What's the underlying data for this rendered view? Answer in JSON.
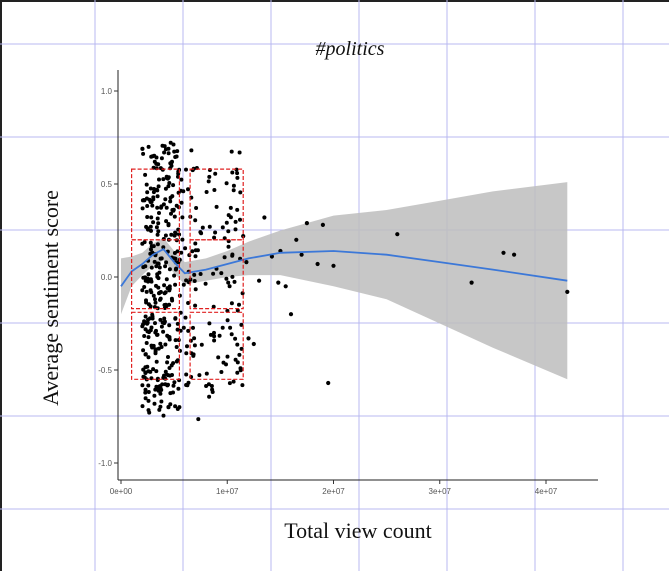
{
  "chart_data": {
    "type": "scatter",
    "title": "#politics",
    "xlabel": "Total view count",
    "ylabel": "Average sentiment score",
    "xlim": [
      0,
      43000000
    ],
    "ylim": [
      -1.05,
      1.1
    ],
    "x_ticks": [
      0,
      10000000,
      20000000,
      30000000,
      40000000
    ],
    "x_tick_labels": [
      "0e+00",
      "1e+07",
      "2e+07",
      "3e+07",
      "4e+07"
    ],
    "y_ticks": [
      -1.0,
      -0.5,
      0.0,
      0.5,
      1.0
    ],
    "y_tick_labels": [
      "-1.0",
      "-0.5",
      "0.0",
      "0.5",
      "1.0"
    ],
    "grid": "background-gridlines",
    "colors": {
      "points": "#000000",
      "smooth_line": "#3c78d8",
      "confidence_band": "#bdbdbd",
      "highlight_box": "#e02020",
      "grid": "#b8b8f0"
    },
    "series": [
      {
        "kind": "points",
        "x": [
          37000000,
          36000000,
          42000000,
          33000000,
          26000000,
          20000000,
          19500000,
          19000000,
          18500000,
          17500000,
          17000000,
          16500000,
          16000000,
          15500000,
          15000000,
          14800000,
          14200000,
          13500000,
          13000000,
          12500000,
          12000000,
          11800000,
          11500000
        ],
        "y": [
          0.12,
          0.13,
          -0.08,
          -0.03,
          0.23,
          0.06,
          -0.57,
          0.28,
          0.07,
          0.29,
          0.12,
          0.2,
          -0.2,
          -0.05,
          0.14,
          -0.03,
          0.11,
          0.32,
          -0.02,
          -0.36,
          -0.33,
          0.08,
          0.22
        ]
      },
      {
        "kind": "smooth",
        "x": [
          0,
          1000000,
          2000000,
          3000000,
          4000000,
          5000000,
          6000000,
          8000000,
          10000000,
          12000000,
          15000000,
          20000000,
          25000000,
          30000000,
          35000000,
          42000000
        ],
        "y": [
          -0.05,
          0.03,
          0.07,
          0.12,
          0.15,
          0.08,
          0.02,
          0.04,
          0.07,
          0.1,
          0.13,
          0.14,
          0.12,
          0.08,
          0.04,
          -0.02
        ],
        "ci_low": [
          -0.2,
          -0.05,
          0.01,
          0.06,
          0.09,
          0.02,
          -0.04,
          -0.02,
          0.0,
          0.01,
          0.01,
          -0.05,
          -0.12,
          -0.25,
          -0.38,
          -0.55
        ],
        "ci_high": [
          0.1,
          0.11,
          0.13,
          0.18,
          0.21,
          0.14,
          0.08,
          0.1,
          0.14,
          0.19,
          0.25,
          0.33,
          0.36,
          0.41,
          0.46,
          0.51
        ]
      }
    ],
    "highlight_boxes": [
      {
        "x": [
          1000000,
          5500000
        ],
        "y": [
          0.2,
          0.58
        ]
      },
      {
        "x": [
          6500000,
          11500000
        ],
        "y": [
          0.2,
          0.58
        ]
      },
      {
        "x": [
          1000000,
          5500000
        ],
        "y": [
          -0.17,
          0.2
        ]
      },
      {
        "x": [
          6500000,
          11500000
        ],
        "y": [
          -0.17,
          0.2
        ]
      },
      {
        "x": [
          1000000,
          5500000
        ],
        "y": [
          -0.55,
          -0.19
        ]
      },
      {
        "x": [
          6500000,
          11500000
        ],
        "y": [
          -0.55,
          -0.19
        ]
      }
    ]
  }
}
